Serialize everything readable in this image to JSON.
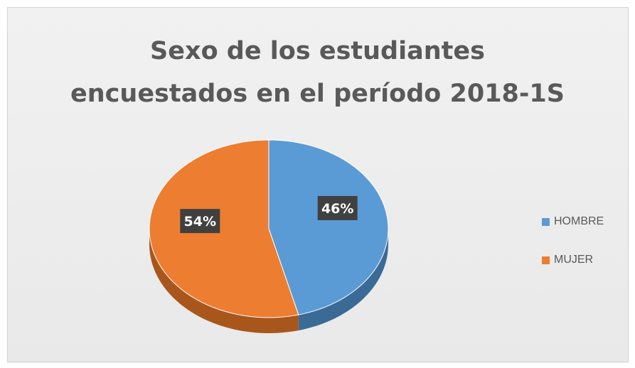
{
  "chart_data": {
    "type": "pie",
    "title": "Sexo de los estudiantes encuestados en el período 2018-1S",
    "title_lines": [
      "Sexo de los estudiantes",
      "encuestados en el período 2018-1S"
    ],
    "style": "3d",
    "legend_position": "right",
    "slices": [
      {
        "label": "HOMBRE",
        "value": 46,
        "display": "46%",
        "color": "#5b9bd5",
        "side_color": "#3a6a96"
      },
      {
        "label": "MUJER",
        "value": 54,
        "display": "54%",
        "color": "#ed7d31",
        "side_color": "#a9561c"
      }
    ]
  }
}
